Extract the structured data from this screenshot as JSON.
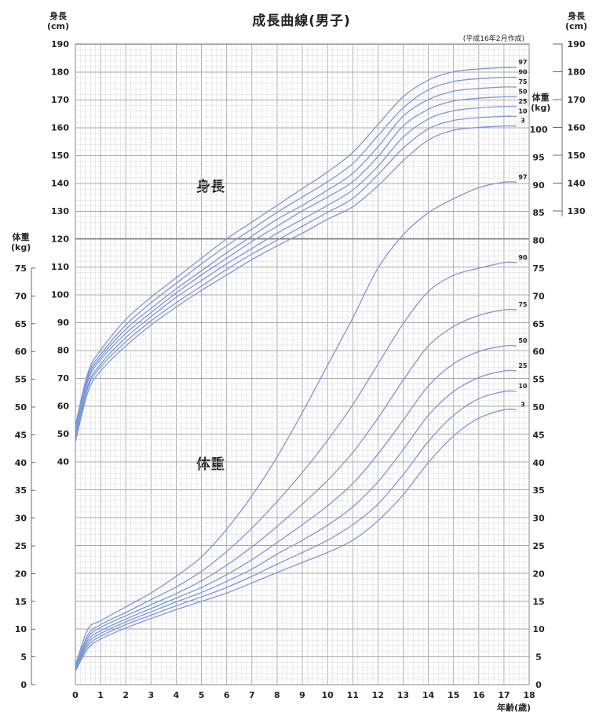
{
  "title": "成長曲線(男子)",
  "note": "(平成16年2月作成)",
  "height_axis_label": "身長",
  "height_unit": "(cm)",
  "weight_axis_label": "体重",
  "weight_unit": "(kg)",
  "x_axis_label": "年齢(歳)",
  "section_labels": {
    "height": "身長",
    "weight": "体重"
  },
  "line_color": "#7e97d6",
  "chart_data": {
    "type": "line",
    "title": "成長曲線(男子)",
    "xlabel": "年齢(歳)",
    "x_ticks": [
      0,
      1,
      2,
      3,
      4,
      5,
      6,
      7,
      8,
      9,
      10,
      11,
      12,
      13,
      14,
      15,
      16,
      17,
      18
    ],
    "xlim": [
      0,
      18
    ],
    "grid": true,
    "axes": {
      "height_left": {
        "label": "身長 (cm)",
        "ticks": [
          40,
          50,
          60,
          70,
          80,
          90,
          100,
          110,
          120,
          130,
          140,
          150,
          160,
          170,
          180,
          190
        ]
      },
      "weight_left": {
        "label": "体重 (kg)",
        "ticks": [
          0,
          5,
          10,
          15,
          20,
          25,
          30,
          35,
          40,
          45,
          50,
          55,
          60,
          65,
          70,
          75
        ]
      },
      "weight_lower_right": {
        "ticks": [
          0,
          5,
          10,
          15,
          20,
          25,
          30,
          35,
          40,
          45,
          50,
          55,
          60,
          65,
          70,
          75,
          80
        ]
      },
      "height_right": {
        "label": "身長 (cm)",
        "ticks": [
          130,
          140,
          150,
          160,
          170,
          180,
          190
        ]
      },
      "weight_upper_right": {
        "label": "体重 (kg)",
        "ticks": [
          85,
          90,
          95,
          100
        ]
      }
    },
    "height_series": [
      {
        "name": "97",
        "x": [
          0,
          0.5,
          1,
          2,
          3,
          4,
          5,
          6,
          7,
          8,
          9,
          10,
          11,
          12,
          13,
          14,
          15,
          16,
          17,
          17.5
        ],
        "y": [
          53,
          72,
          80,
          91,
          99,
          106,
          113,
          120,
          126,
          132,
          138,
          144,
          151,
          161,
          171,
          177,
          180,
          181,
          181.5,
          181.5
        ]
      },
      {
        "name": "90",
        "x": [
          0,
          0.5,
          1,
          2,
          3,
          4,
          5,
          6,
          7,
          8,
          9,
          10,
          11,
          12,
          13,
          14,
          15,
          16,
          17,
          17.5
        ],
        "y": [
          52,
          71,
          78.5,
          89,
          97,
          104,
          111,
          117.5,
          123.5,
          129.5,
          135,
          140.5,
          147,
          157,
          167,
          173.5,
          176.5,
          177.5,
          178,
          178
        ]
      },
      {
        "name": "75",
        "x": [
          0,
          0.5,
          1,
          2,
          3,
          4,
          5,
          6,
          7,
          8,
          9,
          10,
          11,
          12,
          13,
          14,
          15,
          16,
          17,
          17.5
        ],
        "y": [
          51,
          70,
          77.5,
          87.5,
          95,
          102,
          108.5,
          115,
          121,
          127,
          132,
          137.5,
          143.5,
          153,
          164,
          170,
          173,
          174,
          174.5,
          174.5
        ]
      },
      {
        "name": "50",
        "x": [
          0,
          0.5,
          1,
          2,
          3,
          4,
          5,
          6,
          7,
          8,
          9,
          10,
          11,
          12,
          13,
          14,
          15,
          16,
          17,
          17.5
        ],
        "y": [
          50,
          69,
          76.5,
          86,
          93.5,
          100.5,
          107,
          113,
          119,
          124.5,
          130,
          135,
          140.5,
          149.5,
          160.5,
          166.5,
          169.5,
          170.5,
          171,
          171
        ]
      },
      {
        "name": "25",
        "x": [
          0,
          0.5,
          1,
          2,
          3,
          4,
          5,
          6,
          7,
          8,
          9,
          10,
          11,
          12,
          13,
          14,
          15,
          16,
          17,
          17.5
        ],
        "y": [
          49,
          67.5,
          75,
          84.5,
          92,
          99,
          105,
          111,
          116.5,
          122,
          127,
          132,
          137.5,
          146,
          156.5,
          163,
          166,
          167,
          167.5,
          167.5
        ]
      },
      {
        "name": "10",
        "x": [
          0,
          0.5,
          1,
          2,
          3,
          4,
          5,
          6,
          7,
          8,
          9,
          10,
          11,
          12,
          13,
          14,
          15,
          16,
          17,
          17.5
        ],
        "y": [
          48,
          66.5,
          74,
          83,
          90.5,
          97,
          103,
          109,
          114.5,
          119.5,
          124.5,
          129.5,
          134.5,
          143,
          152.5,
          159.5,
          162.5,
          163.5,
          164,
          164
        ]
      },
      {
        "name": "3",
        "x": [
          0,
          0.5,
          1,
          2,
          3,
          4,
          5,
          6,
          7,
          8,
          9,
          10,
          11,
          12,
          13,
          14,
          15,
          16,
          17,
          17.5
        ],
        "y": [
          47,
          65,
          72.5,
          81.5,
          89,
          95.5,
          101.5,
          107,
          112.5,
          117.5,
          122,
          127,
          131.5,
          139,
          148,
          155.5,
          159,
          160,
          160.5,
          160.5
        ]
      }
    ],
    "weight_series": [
      {
        "name": "97",
        "x": [
          0,
          0.5,
          1,
          2,
          3,
          4,
          5,
          6,
          7,
          8,
          9,
          10,
          11,
          12,
          13,
          14,
          15,
          16,
          17,
          17.5
        ],
        "y": [
          3.5,
          10,
          11.5,
          14,
          16.5,
          19.5,
          23,
          28,
          34,
          41,
          49,
          57.5,
          66,
          75,
          81,
          85,
          87.5,
          89.5,
          90.5,
          90.5
        ]
      },
      {
        "name": "90",
        "x": [
          0,
          0.5,
          1,
          2,
          3,
          4,
          5,
          6,
          7,
          8,
          9,
          10,
          11,
          12,
          13,
          14,
          15,
          16,
          17,
          17.5
        ],
        "y": [
          3.3,
          9,
          10.8,
          13,
          15.3,
          17.6,
          20.4,
          24,
          28.2,
          33,
          38.2,
          44,
          50.4,
          57.7,
          65,
          70.8,
          73.7,
          75,
          76,
          76
        ]
      },
      {
        "name": "75",
        "x": [
          0,
          0.5,
          1,
          2,
          3,
          4,
          5,
          6,
          7,
          8,
          9,
          10,
          11,
          12,
          13,
          14,
          15,
          16,
          17,
          17.5
        ],
        "y": [
          3.1,
          8.5,
          10.3,
          12.4,
          14.4,
          16.4,
          18.7,
          21.5,
          24.8,
          28.5,
          32.5,
          36.8,
          41.8,
          48,
          54.8,
          61,
          64.5,
          66.5,
          67.5,
          67.5
        ]
      },
      {
        "name": "50",
        "x": [
          0,
          0.5,
          1,
          2,
          3,
          4,
          5,
          6,
          7,
          8,
          9,
          10,
          11,
          12,
          13,
          14,
          15,
          16,
          17,
          17.5
        ],
        "y": [
          3,
          8,
          9.7,
          11.8,
          13.7,
          15.6,
          17.5,
          19.8,
          22.5,
          25.6,
          28.8,
          32.2,
          36.2,
          41.5,
          47.6,
          53.8,
          57.8,
          60,
          61,
          61
        ]
      },
      {
        "name": "25",
        "x": [
          0,
          0.5,
          1,
          2,
          3,
          4,
          5,
          6,
          7,
          8,
          9,
          10,
          11,
          12,
          13,
          14,
          15,
          16,
          17,
          17.5
        ],
        "y": [
          2.8,
          7.5,
          9.2,
          11.3,
          13.1,
          14.9,
          16.6,
          18.6,
          20.8,
          23.5,
          26,
          28.7,
          32,
          36.5,
          42.3,
          48.5,
          52.8,
          55.3,
          56.5,
          56.5
        ]
      },
      {
        "name": "10",
        "x": [
          0,
          0.5,
          1,
          2,
          3,
          4,
          5,
          6,
          7,
          8,
          9,
          10,
          11,
          12,
          13,
          14,
          15,
          16,
          17,
          17.5
        ],
        "y": [
          2.6,
          7,
          8.7,
          10.8,
          12.5,
          14.2,
          15.8,
          17.5,
          19.5,
          21.7,
          23.8,
          26,
          28.8,
          32.5,
          37.8,
          43.8,
          48.5,
          51.5,
          52.8,
          52.8
        ]
      },
      {
        "name": "3",
        "x": [
          0,
          0.5,
          1,
          2,
          3,
          4,
          5,
          6,
          7,
          8,
          9,
          10,
          11,
          12,
          13,
          14,
          15,
          16,
          17,
          17.5
        ],
        "y": [
          2.4,
          6.5,
          8.2,
          10.2,
          11.9,
          13.5,
          15,
          16.5,
          18.3,
          20.2,
          22,
          23.8,
          26,
          29.5,
          34.2,
          40,
          44.8,
          48,
          49.5,
          49.5
        ]
      }
    ]
  }
}
